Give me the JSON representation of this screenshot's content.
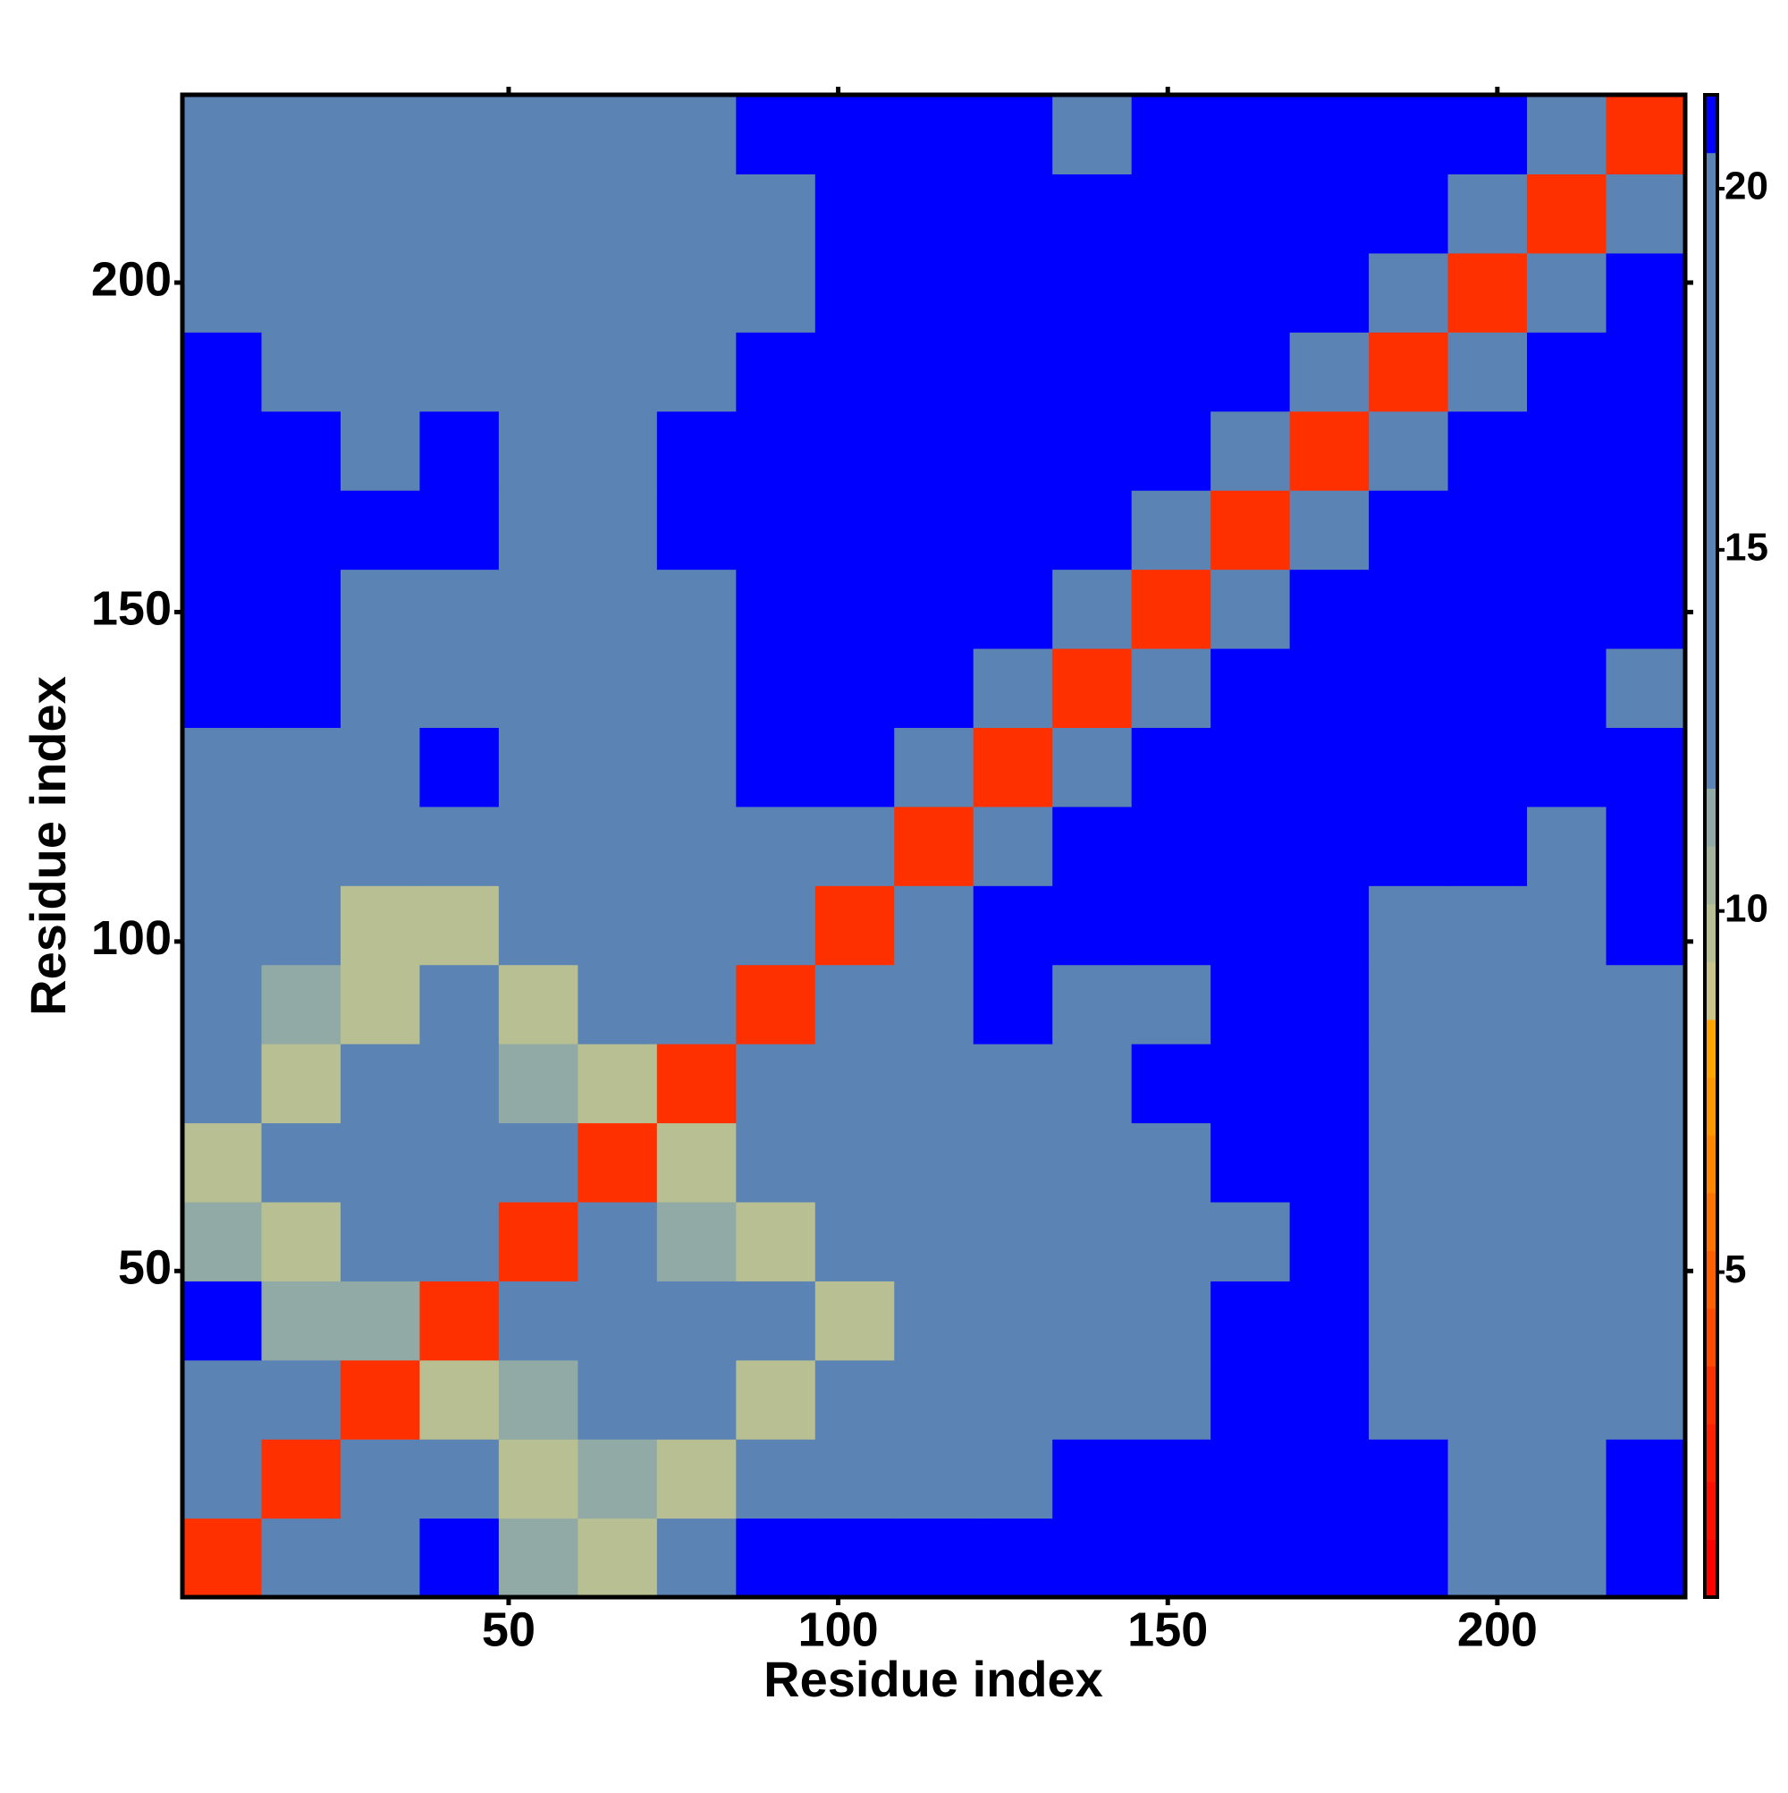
{
  "chart_data": {
    "type": "heatmap",
    "xlabel": "Residue index",
    "ylabel": "Residue index",
    "xlim": [
      0.5,
      228.5
    ],
    "ylim": [
      0.5,
      228.5
    ],
    "xticks": [
      50,
      100,
      150,
      200
    ],
    "yticks": [
      50,
      100,
      150,
      200
    ],
    "xbins": [
      0.5,
      12.5,
      24.5,
      36.5,
      48.5,
      60.5,
      72.5,
      84.5,
      96.5,
      108.5,
      120.5,
      132.5,
      144.5,
      156.5,
      168.5,
      180.5,
      192.5,
      204.5,
      216.5,
      228.5
    ],
    "ybins": [
      0.5,
      12.5,
      24.5,
      36.5,
      48.5,
      60.5,
      72.5,
      84.5,
      96.5,
      108.5,
      120.5,
      132.5,
      144.5,
      156.5,
      168.5,
      180.5,
      192.5,
      204.5,
      216.5,
      228.5
    ],
    "z": [
      [
        3,
        13,
        16,
        21,
        11,
        10,
        16,
        21,
        21,
        21,
        21,
        21,
        21,
        21,
        21,
        21,
        17,
        17,
        21
      ],
      [
        13,
        3,
        13,
        16,
        10,
        11,
        10,
        16,
        17,
        18,
        20,
        21,
        21,
        21,
        21,
        21,
        17,
        16,
        21
      ],
      [
        16,
        13,
        3,
        10,
        11,
        16,
        15,
        10,
        16,
        17,
        18,
        19,
        18,
        21,
        21,
        19,
        16,
        16,
        20
      ],
      [
        21,
        11,
        11,
        3,
        13,
        16,
        20,
        15,
        10,
        16,
        17,
        18,
        17,
        21,
        21,
        19,
        16,
        16,
        18
      ],
      [
        11,
        10,
        15,
        13,
        3,
        13,
        11,
        10,
        16,
        16,
        16,
        17,
        17,
        20,
        21,
        19,
        16,
        16,
        17
      ],
      [
        10,
        15,
        16,
        16,
        13,
        3,
        10,
        15,
        16,
        18,
        19,
        18,
        20,
        21,
        21,
        20,
        17,
        16,
        17
      ],
      [
        15,
        10,
        16,
        20,
        11,
        10,
        3,
        13,
        16,
        19,
        20,
        20,
        21,
        21,
        21,
        19,
        17,
        16,
        18
      ],
      [
        16,
        11,
        10,
        20,
        10,
        15,
        13,
        3,
        13,
        18,
        21,
        19,
        19,
        21,
        21,
        18,
        17,
        17,
        18
      ],
      [
        17,
        16,
        10,
        10,
        16,
        16,
        17,
        13,
        3,
        13,
        21,
        21,
        21,
        21,
        21,
        19,
        18,
        19,
        21
      ],
      [
        18,
        16,
        16,
        16,
        18,
        18,
        19,
        17,
        13,
        3,
        13,
        21,
        21,
        21,
        21,
        21,
        21,
        20,
        21
      ],
      [
        19,
        19,
        20,
        21,
        19,
        19,
        20,
        21,
        21,
        13,
        3,
        13,
        21,
        21,
        21,
        21,
        21,
        21,
        21
      ],
      [
        21,
        21,
        20,
        19,
        18,
        18,
        20,
        21,
        21,
        21,
        13,
        3,
        13,
        21,
        21,
        21,
        21,
        21,
        20
      ],
      [
        21,
        21,
        20,
        18,
        18,
        19,
        20,
        21,
        21,
        21,
        21,
        13,
        3,
        13,
        21,
        21,
        21,
        21,
        21
      ],
      [
        21,
        21,
        21,
        21,
        20,
        20,
        21,
        21,
        21,
        21,
        21,
        21,
        13,
        3,
        13,
        21,
        21,
        21,
        21
      ],
      [
        21,
        21,
        20,
        21,
        20,
        20,
        21,
        21,
        21,
        21,
        21,
        21,
        21,
        13,
        3,
        13,
        21,
        21,
        21
      ],
      [
        21,
        20,
        19,
        20,
        19,
        19,
        20,
        21,
        21,
        21,
        21,
        21,
        21,
        21,
        13,
        3,
        13,
        21,
        21
      ],
      [
        20,
        18,
        18,
        18,
        19,
        18,
        19,
        20,
        21,
        21,
        21,
        21,
        21,
        21,
        21,
        13,
        3,
        13,
        21
      ],
      [
        19,
        17,
        17,
        17,
        18,
        17,
        18,
        20,
        21,
        21,
        21,
        21,
        21,
        21,
        21,
        21,
        13,
        3,
        13
      ],
      [
        20,
        19,
        19,
        18,
        18,
        18,
        19,
        21,
        21,
        21,
        21,
        20,
        21,
        21,
        21,
        21,
        21,
        13,
        3
      ]
    ],
    "clim": [
      0.5,
      21.3
    ],
    "colorbar_ticks": [
      5,
      10,
      15,
      20
    ],
    "colormap": [
      "#ff0000",
      "#ff1000",
      "#ff2000",
      "#ff3000",
      "#ff4a00",
      "#ff6000",
      "#ff7400",
      "#ff8800",
      "#ff9800",
      "#ffa500",
      "#c9c48a",
      "#b8bf92",
      "#a4b59c",
      "#92aaa6",
      "#5b84b4",
      "#5b84b4",
      "#5b84b4",
      "#5b84b4",
      "#5b84b4",
      "#5b84b4",
      "#5b84b4",
      "#5b84b4",
      "#5b84b4",
      "#5b84b4",
      "#5b84b4",
      "#0000ff"
    ]
  }
}
